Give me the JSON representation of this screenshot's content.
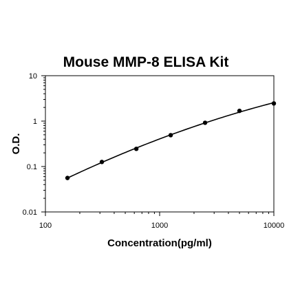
{
  "chart_data": {
    "type": "scatter",
    "title": "Mouse MMP-8 ELISA Kit",
    "xlabel": "Concentration(pg/ml)",
    "ylabel": "O.D.",
    "x_scale": "log",
    "y_scale": "log",
    "xlim": [
      100,
      10000
    ],
    "ylim": [
      0.01,
      10
    ],
    "x_ticks": [
      100,
      1000,
      10000
    ],
    "x_tick_labels": [
      "100",
      "1000",
      "10000"
    ],
    "y_ticks": [
      0.01,
      0.1,
      1,
      10
    ],
    "y_tick_labels": [
      "0.01",
      "0.1",
      "1",
      "10"
    ],
    "grid": false,
    "series": [
      {
        "points": [
          {
            "x": 156,
            "y": 0.056
          },
          {
            "x": 312,
            "y": 0.126
          },
          {
            "x": 625,
            "y": 0.245
          },
          {
            "x": 1250,
            "y": 0.49
          },
          {
            "x": 2500,
            "y": 0.92
          },
          {
            "x": 5000,
            "y": 1.68
          },
          {
            "x": 10000,
            "y": 2.45
          }
        ],
        "fit_line": true,
        "color": "#000000"
      }
    ]
  }
}
